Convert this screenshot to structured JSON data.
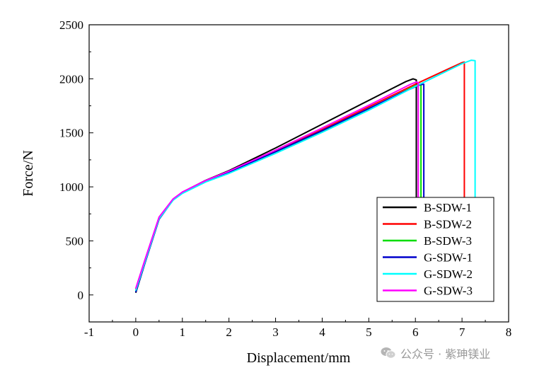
{
  "chart_data": {
    "type": "line",
    "title": "",
    "xlabel": "Displacement/mm",
    "ylabel": "Force/N",
    "xlim": [
      -1,
      8
    ],
    "ylim": [
      -250,
      2500
    ],
    "xticks": [
      -1,
      0,
      1,
      2,
      3,
      4,
      5,
      6,
      7,
      8
    ],
    "yticks": [
      0,
      500,
      1000,
      1500,
      2000,
      2500
    ],
    "grid": false,
    "legend_position": "bottom-right",
    "series": [
      {
        "name": "B-SDW-1",
        "color": "#000000",
        "points": [
          [
            0,
            20
          ],
          [
            0.2,
            300
          ],
          [
            0.5,
            700
          ],
          [
            0.8,
            880
          ],
          [
            1.0,
            950
          ],
          [
            1.5,
            1060
          ],
          [
            2.0,
            1150
          ],
          [
            3.0,
            1360
          ],
          [
            4.0,
            1580
          ],
          [
            5.0,
            1800
          ],
          [
            5.5,
            1910
          ],
          [
            5.8,
            1975
          ],
          [
            5.95,
            2000
          ],
          [
            6.02,
            1990
          ],
          [
            6.02,
            0
          ]
        ]
      },
      {
        "name": "B-SDW-2",
        "color": "#ff0000",
        "points": [
          [
            0,
            50
          ],
          [
            0.2,
            320
          ],
          [
            0.5,
            715
          ],
          [
            0.8,
            885
          ],
          [
            1.0,
            950
          ],
          [
            1.5,
            1055
          ],
          [
            2.0,
            1140
          ],
          [
            3.0,
            1330
          ],
          [
            4.0,
            1530
          ],
          [
            5.0,
            1740
          ],
          [
            6.0,
            1950
          ],
          [
            6.5,
            2050
          ],
          [
            7.0,
            2150
          ],
          [
            7.05,
            2155
          ],
          [
            7.05,
            0
          ]
        ]
      },
      {
        "name": "B-SDW-3",
        "color": "#00dd00",
        "points": [
          [
            0,
            30
          ],
          [
            0.2,
            305
          ],
          [
            0.5,
            705
          ],
          [
            0.8,
            880
          ],
          [
            1.0,
            945
          ],
          [
            1.5,
            1050
          ],
          [
            2.0,
            1135
          ],
          [
            3.0,
            1320
          ],
          [
            4.0,
            1515
          ],
          [
            5.0,
            1720
          ],
          [
            5.6,
            1850
          ],
          [
            6.0,
            1935
          ],
          [
            6.12,
            1950
          ],
          [
            6.12,
            0
          ]
        ]
      },
      {
        "name": "G-SDW-1",
        "color": "#0000cc",
        "points": [
          [
            0,
            25
          ],
          [
            0.2,
            300
          ],
          [
            0.5,
            700
          ],
          [
            0.8,
            878
          ],
          [
            1.0,
            945
          ],
          [
            1.5,
            1050
          ],
          [
            2.0,
            1135
          ],
          [
            3.0,
            1325
          ],
          [
            4.0,
            1520
          ],
          [
            5.0,
            1725
          ],
          [
            5.7,
            1870
          ],
          [
            6.1,
            1945
          ],
          [
            6.18,
            1950
          ],
          [
            6.18,
            0
          ]
        ]
      },
      {
        "name": "G-SDW-2",
        "color": "#00ffff",
        "points": [
          [
            0,
            40
          ],
          [
            0.2,
            310
          ],
          [
            0.5,
            705
          ],
          [
            0.8,
            876
          ],
          [
            1.0,
            940
          ],
          [
            1.5,
            1045
          ],
          [
            2.0,
            1125
          ],
          [
            3.0,
            1310
          ],
          [
            4.0,
            1505
          ],
          [
            5.0,
            1710
          ],
          [
            6.0,
            1930
          ],
          [
            6.5,
            2035
          ],
          [
            7.0,
            2140
          ],
          [
            7.2,
            2172
          ],
          [
            7.28,
            2168
          ],
          [
            7.28,
            0
          ]
        ]
      },
      {
        "name": "G-SDW-3",
        "color": "#ff00ff",
        "points": [
          [
            0,
            60
          ],
          [
            0.2,
            330
          ],
          [
            0.5,
            720
          ],
          [
            0.8,
            888
          ],
          [
            1.0,
            952
          ],
          [
            1.5,
            1058
          ],
          [
            2.0,
            1145
          ],
          [
            3.0,
            1340
          ],
          [
            4.0,
            1545
          ],
          [
            5.0,
            1755
          ],
          [
            5.6,
            1885
          ],
          [
            5.9,
            1950
          ],
          [
            6.02,
            1970
          ],
          [
            6.06,
            1965
          ],
          [
            6.06,
            0
          ]
        ]
      }
    ]
  },
  "watermark": {
    "icon": "wechat-icon",
    "text": "公众号 · 紫珅镁业"
  }
}
